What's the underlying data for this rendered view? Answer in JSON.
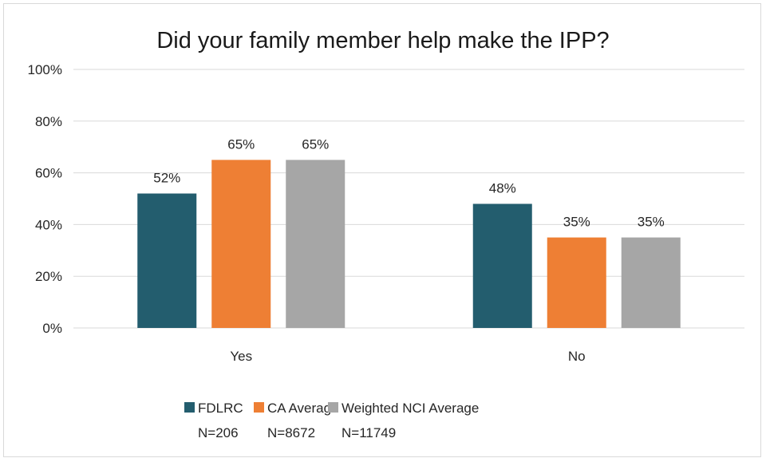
{
  "chart_data": {
    "type": "bar",
    "title": "Did your family member help make the IPP?",
    "categories": [
      "Yes",
      "No"
    ],
    "series": [
      {
        "name": "FDLRC",
        "sublabel": "N=206",
        "values": [
          52,
          48
        ],
        "color": "#235d6e"
      },
      {
        "name": "CA Average",
        "sublabel": "N=8672",
        "values": [
          65,
          35
        ],
        "color": "#ee7f34"
      },
      {
        "name": "Weighted NCI Average",
        "sublabel": "N=11749",
        "values": [
          65,
          35
        ],
        "color": "#a6a6a6"
      }
    ],
    "value_format": "percent",
    "ylim": [
      0,
      100
    ],
    "yticks": [
      0,
      20,
      40,
      60,
      80,
      100
    ],
    "ytick_labels": [
      "0%",
      "20%",
      "40%",
      "60%",
      "80%",
      "100%"
    ],
    "data_labels": [
      [
        "52%",
        "48%"
      ],
      [
        "65%",
        "35%"
      ],
      [
        "65%",
        "35%"
      ]
    ],
    "grid": true,
    "legend_position": "bottom",
    "gridline_color": "#d9d9d9"
  }
}
